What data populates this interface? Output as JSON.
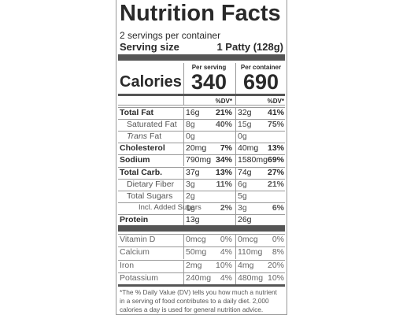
{
  "title": "Nutrition Facts",
  "servings": "2 servings per container",
  "serving_size": {
    "label": "Serving size",
    "value": "1 Patty (128g)"
  },
  "calories": {
    "label": "Calories",
    "columns": [
      {
        "header": "Per serving",
        "value": "340"
      },
      {
        "header": "Per container",
        "value": "690"
      }
    ]
  },
  "dv_header": [
    "%DV*",
    "%DV*"
  ],
  "rows": [
    {
      "name": "Total Fat",
      "bold": true,
      "indent": 0,
      "cells": [
        "16g",
        "21%",
        "32g",
        "41%"
      ]
    },
    {
      "name": "Saturated Fat",
      "bold": false,
      "indent": 1,
      "cells": [
        "8g",
        "40%",
        "15g",
        "75%"
      ]
    },
    {
      "name_italic": "Trans",
      "name": "Fat",
      "bold": false,
      "indent": 1,
      "cells": [
        "0g",
        null,
        "0g",
        null
      ]
    },
    {
      "name": "Cholesterol",
      "bold": true,
      "indent": 0,
      "cells": [
        "20mg",
        "7%",
        "40mg",
        "13%"
      ]
    },
    {
      "name": "Sodium",
      "bold": true,
      "indent": 0,
      "cells": [
        "790mg",
        "34%",
        "1580mg",
        "69%"
      ]
    },
    {
      "name": "Total Carb.",
      "bold": true,
      "indent": 0,
      "cells": [
        "37g",
        "13%",
        "74g",
        "27%"
      ]
    },
    {
      "name": "Dietary Fiber",
      "bold": false,
      "indent": 1,
      "cells": [
        "3g",
        "11%",
        "6g",
        "21%"
      ]
    },
    {
      "name": "Total Sugars",
      "bold": false,
      "indent": 1,
      "cells": [
        "2g",
        null,
        "5g",
        null
      ]
    },
    {
      "name": "Incl. Added Sugars",
      "bold": false,
      "indent": 2,
      "cells": [
        "1g",
        "2%",
        "3g",
        "6%"
      ]
    },
    {
      "name": "Protein",
      "bold": true,
      "indent": 0,
      "cells": [
        "13g",
        null,
        "26g",
        null
      ]
    }
  ],
  "vitamins": [
    {
      "name": "Vitamin D",
      "cells": [
        "0mcg",
        "0%",
        "0mcg",
        "0%"
      ]
    },
    {
      "name": "Calcium",
      "cells": [
        "50mg",
        "4%",
        "110mg",
        "8%"
      ]
    },
    {
      "name": "Iron",
      "cells": [
        "2mg",
        "10%",
        "4mg",
        "20%"
      ]
    },
    {
      "name": "Potassium",
      "cells": [
        "240mg",
        "4%",
        "480mg",
        "10%"
      ]
    }
  ],
  "footnote": "*The % Daily Value (DV) tells you how much a nutrient in a serving of food contributes to a daily diet. 2,000 calories a day is used for general nutrition advice."
}
